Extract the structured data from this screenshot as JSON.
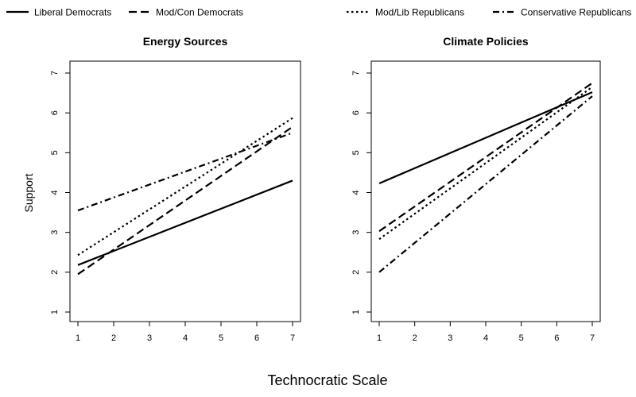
{
  "chart_data": {
    "type": "line",
    "xlabel": "Technocratic Scale",
    "ylabel": "Support",
    "legend": {
      "placement": "top",
      "entries": [
        "Liberal Democrats",
        "Mod/Con Democrats",
        "Mod/Lib Republicans",
        "Conservative Republicans"
      ]
    },
    "grid": false,
    "panels": [
      {
        "title": "Energy Sources",
        "x": [
          1,
          7
        ],
        "xlim": [
          1,
          7
        ],
        "ylim": [
          1,
          7
        ],
        "xticks": [
          1,
          2,
          3,
          4,
          5,
          6,
          7
        ],
        "yticks": [
          1,
          2,
          3,
          4,
          5,
          6,
          7
        ],
        "series": [
          {
            "name": "Liberal Democrats",
            "style": "solid",
            "values": [
              2.18,
              4.3
            ]
          },
          {
            "name": "Mod/Con Democrats",
            "style": "dashed",
            "values": [
              1.95,
              5.65
            ]
          },
          {
            "name": "Mod/Lib Republicans",
            "style": "dotted",
            "values": [
              2.43,
              5.87
            ]
          },
          {
            "name": "Conservative Republicans",
            "style": "dashdot",
            "values": [
              3.55,
              5.5
            ]
          }
        ]
      },
      {
        "title": "Climate Policies",
        "x": [
          1,
          7
        ],
        "xlim": [
          1,
          7
        ],
        "ylim": [
          1,
          7
        ],
        "xticks": [
          1,
          2,
          3,
          4,
          5,
          6,
          7
        ],
        "yticks": [
          1,
          2,
          3,
          4,
          5,
          6,
          7
        ],
        "series": [
          {
            "name": "Liberal Democrats",
            "style": "solid",
            "values": [
              4.23,
              6.52
            ]
          },
          {
            "name": "Mod/Con Democrats",
            "style": "dashed",
            "values": [
              3.03,
              6.75
            ]
          },
          {
            "name": "Mod/Lib Republicans",
            "style": "dotted",
            "values": [
              2.83,
              6.65
            ]
          },
          {
            "name": "Conservative Republicans",
            "style": "dashdot",
            "values": [
              2.0,
              6.42
            ]
          }
        ]
      }
    ]
  }
}
